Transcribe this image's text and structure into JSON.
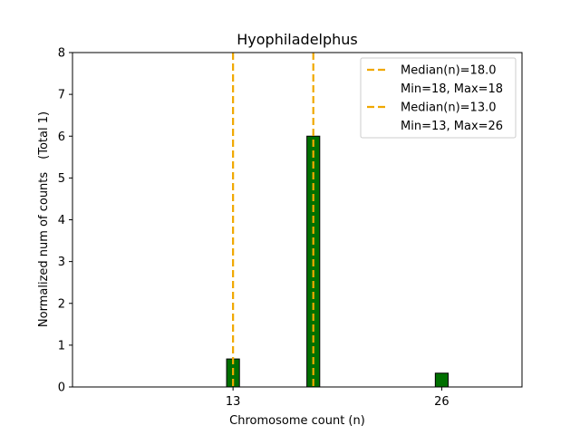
{
  "chart_data": {
    "type": "bar",
    "title": "Hyophiladelphus",
    "xlabel": "Chromosome count (n)",
    "ylabel": "Normalized num of counts",
    "ylabel_note": "(Total 1)",
    "xlim": [
      3,
      31
    ],
    "ylim": [
      0,
      8
    ],
    "xticks": [
      13,
      26
    ],
    "yticks": [
      0,
      1,
      2,
      3,
      4,
      5,
      6,
      7,
      8
    ],
    "bar_width": 0.8,
    "bars": [
      {
        "x": 13,
        "value": 0.67
      },
      {
        "x": 18,
        "value": 6.0
      },
      {
        "x": 26,
        "value": 0.33
      }
    ],
    "bar_color": "#007000",
    "bar_edge_color": "#000000",
    "baseline_until_x": 20,
    "median_lines": [
      {
        "x": 18,
        "label": "Median(n)=18.0",
        "note": "Min=18, Max=18",
        "color": "#f0a800"
      },
      {
        "x": 13,
        "label": "Median(n)=13.0",
        "note": "Min=13, Max=26",
        "color": "#f0a800"
      }
    ],
    "legend_position": "top-right",
    "grid": false
  }
}
